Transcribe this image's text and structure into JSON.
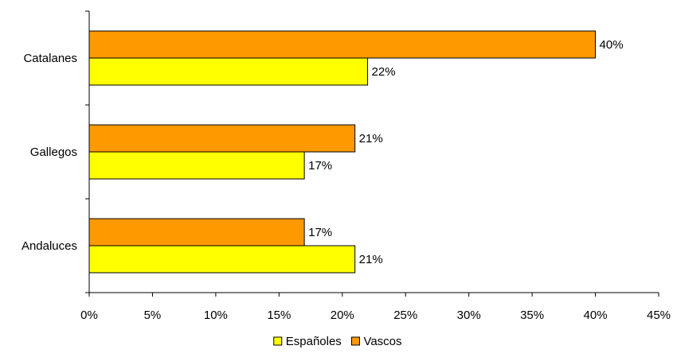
{
  "chart_data": {
    "type": "bar",
    "orientation": "horizontal",
    "categories": [
      "Catalanes",
      "Gallegos",
      "Andaluces"
    ],
    "series": [
      {
        "name": "Vascos",
        "color": "#ff9900",
        "values": [
          40,
          21,
          17
        ],
        "labels": [
          "40%",
          "21%",
          "17%"
        ]
      },
      {
        "name": "Españoles",
        "color": "#ffff00",
        "values": [
          22,
          17,
          21
        ],
        "labels": [
          "22%",
          "17%",
          "21%"
        ]
      }
    ],
    "xlim": [
      0,
      45
    ],
    "xticks": [
      0,
      5,
      10,
      15,
      20,
      25,
      30,
      35,
      40,
      45
    ],
    "xtick_labels": [
      "0%",
      "5%",
      "10%",
      "15%",
      "20%",
      "25%",
      "30%",
      "35%",
      "40%",
      "45%"
    ],
    "grid": false,
    "legend": {
      "position": "bottom",
      "entries": [
        {
          "name": "Españoles",
          "color": "#ffff00"
        },
        {
          "name": "Vascos",
          "color": "#ff9900"
        }
      ]
    }
  }
}
